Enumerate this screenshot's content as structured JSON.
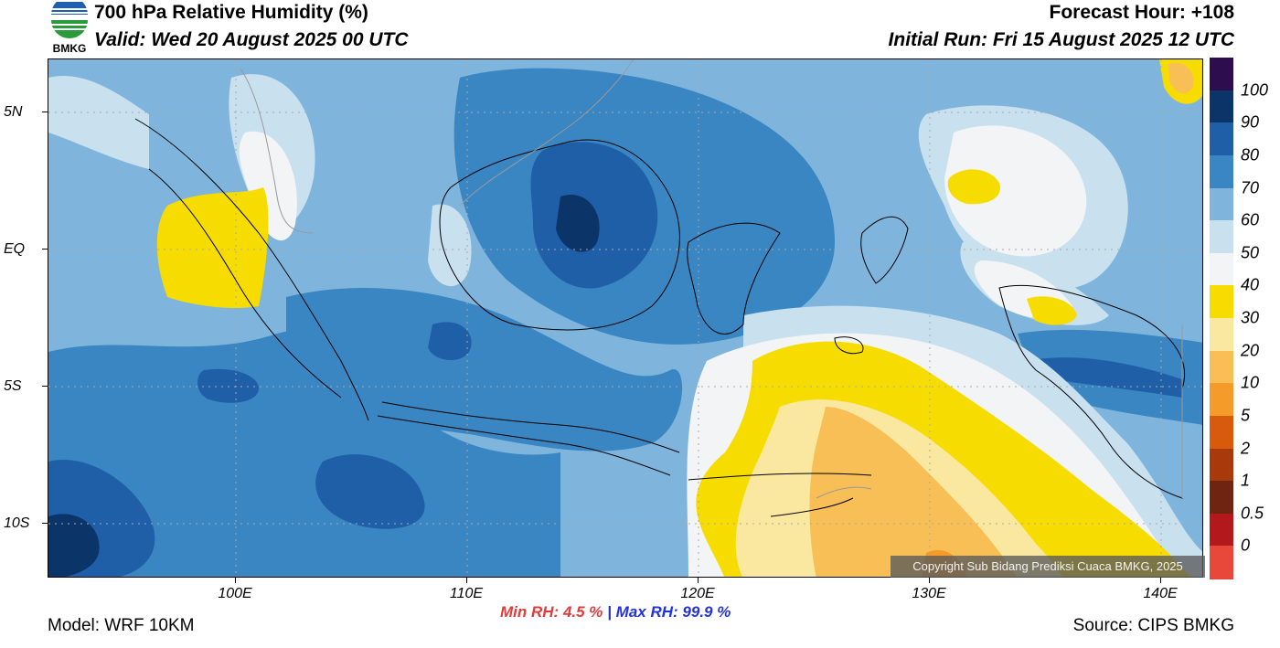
{
  "header": {
    "title": "700 hPa Relative Humidity (%)",
    "valid": "Valid: Wed 20 August 2025 00 UTC",
    "forecast_hour": "Forecast Hour: +108",
    "initial_run": "Initial Run: Fri 15 August 2025 12 UTC",
    "logo_text": "BMKG"
  },
  "map": {
    "lat_labels": [
      "5N",
      "EQ",
      "5S",
      "10S"
    ],
    "lon_labels": [
      "100E",
      "110E",
      "120E",
      "130E",
      "140E"
    ],
    "copyright": "Copyright Sub Bidang Prediksi Cuaca BMKG, 2025"
  },
  "colorbar": {
    "levels": [
      "100",
      "90",
      "80",
      "70",
      "60",
      "50",
      "40",
      "30",
      "20",
      "10",
      "5",
      "2",
      "1",
      "0.5",
      "0"
    ],
    "colors": [
      "#2e0d4f",
      "#0b3468",
      "#1f5fa8",
      "#3a86c2",
      "#7fb5dc",
      "#c9e0ef",
      "#f2f4f6",
      "#f7dc00",
      "#fbe8a0",
      "#f7bf55",
      "#f59b2a",
      "#d85a0c",
      "#a8390a",
      "#6e2410",
      "#b3191b",
      "#e8483a"
    ]
  },
  "stats": {
    "min_label": "Min RH:",
    "min_value": "4.5 %",
    "separator": "|",
    "max_label": "Max RH:",
    "max_value": "99.9 %"
  },
  "footer": {
    "model": "Model: WRF 10KM",
    "source": "Source: CIPS BMKG"
  }
}
